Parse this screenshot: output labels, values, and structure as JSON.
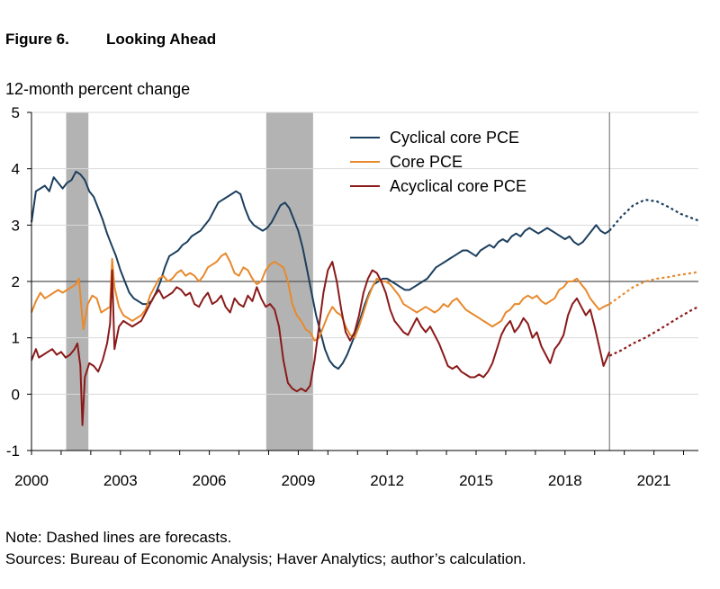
{
  "figure": {
    "number": "Figure 6.",
    "title": "Looking Ahead",
    "unit_label": "12-month percent change",
    "note": "Note: Dashed lines are forecasts.",
    "sources": "Sources: Bureau of Economic Analysis; Haver Analytics; author’s calculation."
  },
  "chart_data": {
    "type": "line",
    "title": "Looking Ahead",
    "ylabel": "12-month percent change",
    "xlim": [
      2000,
      2022.5
    ],
    "ylim": [
      -1,
      5
    ],
    "yticks": [
      -1,
      0,
      1,
      2,
      3,
      4,
      5
    ],
    "xticks": [
      2000,
      2003,
      2006,
      2009,
      2012,
      2015,
      2018,
      2021
    ],
    "grid": true,
    "reference_line": 2,
    "forecast_start": 2019.5,
    "legend_position": "top-center",
    "recessions": [
      [
        2001.17,
        2001.92
      ],
      [
        2007.92,
        2009.5
      ]
    ],
    "series": [
      {
        "name": "Cyclical core PCE",
        "color": "#1c3f5e",
        "x": [
          2000.0,
          2000.15,
          2000.3,
          2000.45,
          2000.6,
          2000.75,
          2000.9,
          2001.05,
          2001.2,
          2001.35,
          2001.5,
          2001.65,
          2001.8,
          2001.95,
          2002.1,
          2002.25,
          2002.4,
          2002.55,
          2002.7,
          2002.85,
          2003.0,
          2003.15,
          2003.3,
          2003.45,
          2003.6,
          2003.75,
          2003.9,
          2004.05,
          2004.2,
          2004.35,
          2004.5,
          2004.65,
          2004.8,
          2004.95,
          2005.1,
          2005.25,
          2005.4,
          2005.55,
          2005.7,
          2005.85,
          2006.0,
          2006.15,
          2006.3,
          2006.45,
          2006.6,
          2006.75,
          2006.9,
          2007.05,
          2007.2,
          2007.35,
          2007.5,
          2007.65,
          2007.8,
          2007.95,
          2008.1,
          2008.25,
          2008.4,
          2008.55,
          2008.7,
          2008.85,
          2009.0,
          2009.15,
          2009.3,
          2009.45,
          2009.6,
          2009.75,
          2009.9,
          2010.05,
          2010.2,
          2010.35,
          2010.5,
          2010.65,
          2010.8,
          2010.95,
          2011.1,
          2011.25,
          2011.4,
          2011.55,
          2011.7,
          2011.85,
          2012.0,
          2012.15,
          2012.3,
          2012.45,
          2012.6,
          2012.75,
          2012.9,
          2013.05,
          2013.2,
          2013.35,
          2013.5,
          2013.65,
          2013.8,
          2013.95,
          2014.1,
          2014.25,
          2014.4,
          2014.55,
          2014.7,
          2014.85,
          2015.0,
          2015.15,
          2015.3,
          2015.45,
          2015.6,
          2015.75,
          2015.9,
          2016.05,
          2016.2,
          2016.35,
          2016.5,
          2016.65,
          2016.8,
          2016.95,
          2017.1,
          2017.25,
          2017.4,
          2017.55,
          2017.7,
          2017.85,
          2018.0,
          2018.15,
          2018.3,
          2018.45,
          2018.6,
          2018.75,
          2018.9,
          2019.05,
          2019.2,
          2019.35,
          2019.5
        ],
        "values": [
          3.05,
          3.6,
          3.65,
          3.7,
          3.6,
          3.85,
          3.75,
          3.65,
          3.75,
          3.8,
          3.95,
          3.9,
          3.8,
          3.6,
          3.5,
          3.3,
          3.1,
          2.85,
          2.65,
          2.45,
          2.2,
          2.0,
          1.8,
          1.7,
          1.65,
          1.6,
          1.6,
          1.65,
          1.8,
          2.0,
          2.25,
          2.45,
          2.5,
          2.55,
          2.65,
          2.7,
          2.8,
          2.85,
          2.9,
          3.0,
          3.1,
          3.25,
          3.4,
          3.45,
          3.5,
          3.55,
          3.6,
          3.55,
          3.3,
          3.1,
          3.0,
          2.95,
          2.9,
          2.95,
          3.05,
          3.2,
          3.35,
          3.4,
          3.3,
          3.1,
          2.9,
          2.6,
          2.2,
          1.8,
          1.4,
          1.1,
          0.8,
          0.6,
          0.5,
          0.45,
          0.55,
          0.7,
          0.9,
          1.1,
          1.35,
          1.6,
          1.8,
          1.95,
          2.0,
          2.05,
          2.05,
          2.0,
          1.95,
          1.9,
          1.85,
          1.85,
          1.9,
          1.95,
          2.0,
          2.05,
          2.15,
          2.25,
          2.3,
          2.35,
          2.4,
          2.45,
          2.5,
          2.55,
          2.55,
          2.5,
          2.45,
          2.55,
          2.6,
          2.65,
          2.6,
          2.7,
          2.75,
          2.7,
          2.8,
          2.85,
          2.8,
          2.9,
          2.95,
          2.9,
          2.85,
          2.9,
          2.95,
          2.9,
          2.85,
          2.8,
          2.75,
          2.8,
          2.7,
          2.65,
          2.7,
          2.8,
          2.9,
          3.0,
          2.9,
          2.85,
          2.9
        ]
      },
      {
        "name": "Core PCE",
        "color": "#e8892c",
        "x": [
          2000.0,
          2000.15,
          2000.3,
          2000.45,
          2000.6,
          2000.75,
          2000.9,
          2001.05,
          2001.2,
          2001.35,
          2001.5,
          2001.6,
          2001.75,
          2001.9,
          2002.05,
          2002.2,
          2002.35,
          2002.5,
          2002.65,
          2002.72,
          2002.8,
          2002.95,
          2003.1,
          2003.25,
          2003.4,
          2003.55,
          2003.7,
          2003.85,
          2004.0,
          2004.15,
          2004.3,
          2004.45,
          2004.6,
          2004.75,
          2004.9,
          2005.05,
          2005.2,
          2005.35,
          2005.5,
          2005.65,
          2005.8,
          2005.95,
          2006.1,
          2006.25,
          2006.4,
          2006.55,
          2006.7,
          2006.85,
          2007.0,
          2007.15,
          2007.3,
          2007.45,
          2007.6,
          2007.75,
          2007.9,
          2008.05,
          2008.2,
          2008.35,
          2008.5,
          2008.65,
          2008.8,
          2008.95,
          2009.1,
          2009.25,
          2009.4,
          2009.55,
          2009.7,
          2009.85,
          2010.0,
          2010.15,
          2010.3,
          2010.45,
          2010.6,
          2010.75,
          2010.9,
          2011.05,
          2011.2,
          2011.35,
          2011.5,
          2011.65,
          2011.8,
          2011.95,
          2012.1,
          2012.25,
          2012.4,
          2012.55,
          2012.7,
          2012.85,
          2013.0,
          2013.15,
          2013.3,
          2013.45,
          2013.6,
          2013.75,
          2013.9,
          2014.05,
          2014.2,
          2014.35,
          2014.5,
          2014.65,
          2014.8,
          2014.95,
          2015.1,
          2015.25,
          2015.4,
          2015.55,
          2015.7,
          2015.85,
          2016.0,
          2016.15,
          2016.3,
          2016.45,
          2016.6,
          2016.75,
          2016.9,
          2017.05,
          2017.2,
          2017.35,
          2017.5,
          2017.65,
          2017.8,
          2017.95,
          2018.1,
          2018.25,
          2018.4,
          2018.55,
          2018.7,
          2018.85,
          2019.0,
          2019.15,
          2019.3,
          2019.5
        ],
        "values": [
          1.45,
          1.65,
          1.8,
          1.7,
          1.75,
          1.8,
          1.85,
          1.8,
          1.85,
          1.9,
          1.95,
          2.05,
          1.15,
          1.6,
          1.75,
          1.7,
          1.45,
          1.5,
          1.55,
          2.4,
          1.9,
          1.55,
          1.4,
          1.35,
          1.3,
          1.35,
          1.4,
          1.5,
          1.75,
          1.9,
          2.05,
          2.1,
          2.0,
          2.05,
          2.15,
          2.2,
          2.1,
          2.15,
          2.1,
          2.0,
          2.1,
          2.25,
          2.3,
          2.35,
          2.45,
          2.5,
          2.35,
          2.15,
          2.1,
          2.25,
          2.2,
          2.05,
          1.95,
          2.0,
          2.2,
          2.3,
          2.35,
          2.3,
          2.25,
          2.0,
          1.6,
          1.4,
          1.3,
          1.15,
          1.1,
          0.95,
          1.0,
          1.2,
          1.4,
          1.55,
          1.45,
          1.4,
          1.2,
          1.05,
          1.0,
          1.2,
          1.45,
          1.7,
          1.9,
          2.05,
          2.0,
          2.0,
          1.95,
          1.85,
          1.75,
          1.6,
          1.55,
          1.5,
          1.45,
          1.5,
          1.55,
          1.5,
          1.45,
          1.5,
          1.6,
          1.55,
          1.65,
          1.7,
          1.6,
          1.5,
          1.45,
          1.4,
          1.35,
          1.3,
          1.25,
          1.2,
          1.25,
          1.3,
          1.45,
          1.5,
          1.6,
          1.6,
          1.7,
          1.75,
          1.7,
          1.75,
          1.65,
          1.6,
          1.65,
          1.7,
          1.85,
          1.9,
          2.0,
          2.0,
          2.05,
          1.95,
          1.85,
          1.7,
          1.6,
          1.5,
          1.55,
          1.6
        ]
      },
      {
        "name": "Acyclical core PCE",
        "color": "#8b1a1a",
        "x": [
          2000.0,
          2000.15,
          2000.25,
          2000.4,
          2000.55,
          2000.7,
          2000.85,
          2001.0,
          2001.15,
          2001.3,
          2001.45,
          2001.55,
          2001.65,
          2001.72,
          2001.8,
          2001.95,
          2002.1,
          2002.25,
          2002.4,
          2002.55,
          2002.65,
          2002.72,
          2002.8,
          2002.95,
          2003.1,
          2003.25,
          2003.4,
          2003.55,
          2003.7,
          2003.85,
          2004.0,
          2004.15,
          2004.3,
          2004.45,
          2004.6,
          2004.75,
          2004.9,
          2005.05,
          2005.2,
          2005.35,
          2005.5,
          2005.65,
          2005.8,
          2005.95,
          2006.1,
          2006.25,
          2006.4,
          2006.55,
          2006.7,
          2006.85,
          2007.0,
          2007.15,
          2007.3,
          2007.45,
          2007.6,
          2007.75,
          2007.9,
          2008.05,
          2008.2,
          2008.35,
          2008.5,
          2008.65,
          2008.8,
          2008.95,
          2009.1,
          2009.25,
          2009.4,
          2009.55,
          2009.7,
          2009.85,
          2010.0,
          2010.15,
          2010.3,
          2010.45,
          2010.6,
          2010.75,
          2010.9,
          2011.05,
          2011.2,
          2011.35,
          2011.5,
          2011.65,
          2011.8,
          2011.95,
          2012.1,
          2012.25,
          2012.4,
          2012.55,
          2012.7,
          2012.85,
          2013.0,
          2013.15,
          2013.3,
          2013.45,
          2013.6,
          2013.75,
          2013.9,
          2014.05,
          2014.2,
          2014.35,
          2014.5,
          2014.65,
          2014.8,
          2014.95,
          2015.1,
          2015.25,
          2015.4,
          2015.55,
          2015.7,
          2015.85,
          2016.0,
          2016.15,
          2016.3,
          2016.45,
          2016.6,
          2016.75,
          2016.9,
          2017.05,
          2017.2,
          2017.35,
          2017.5,
          2017.65,
          2017.8,
          2017.95,
          2018.1,
          2018.25,
          2018.4,
          2018.55,
          2018.7,
          2018.85,
          2019.0,
          2019.15,
          2019.3,
          2019.5
        ],
        "values": [
          0.6,
          0.8,
          0.65,
          0.7,
          0.75,
          0.8,
          0.7,
          0.75,
          0.65,
          0.7,
          0.8,
          0.9,
          0.5,
          -0.55,
          0.3,
          0.55,
          0.5,
          0.4,
          0.6,
          0.9,
          1.25,
          2.2,
          0.8,
          1.2,
          1.3,
          1.25,
          1.2,
          1.25,
          1.3,
          1.45,
          1.6,
          1.75,
          1.85,
          1.7,
          1.75,
          1.8,
          1.9,
          1.85,
          1.75,
          1.8,
          1.6,
          1.55,
          1.7,
          1.8,
          1.6,
          1.65,
          1.75,
          1.55,
          1.45,
          1.7,
          1.6,
          1.55,
          1.75,
          1.65,
          1.9,
          1.7,
          1.55,
          1.6,
          1.5,
          1.2,
          0.6,
          0.2,
          0.1,
          0.05,
          0.1,
          0.05,
          0.15,
          0.6,
          1.2,
          1.8,
          2.2,
          2.35,
          2.0,
          1.5,
          1.1,
          0.95,
          1.1,
          1.4,
          1.8,
          2.05,
          2.2,
          2.15,
          2.0,
          1.8,
          1.5,
          1.3,
          1.2,
          1.1,
          1.05,
          1.2,
          1.35,
          1.2,
          1.1,
          1.2,
          1.05,
          0.9,
          0.7,
          0.5,
          0.45,
          0.5,
          0.4,
          0.35,
          0.3,
          0.3,
          0.35,
          0.3,
          0.4,
          0.55,
          0.8,
          1.05,
          1.2,
          1.3,
          1.1,
          1.2,
          1.35,
          1.25,
          1.0,
          1.1,
          0.85,
          0.7,
          0.55,
          0.8,
          0.9,
          1.05,
          1.4,
          1.6,
          1.7,
          1.55,
          1.4,
          1.5,
          1.2,
          0.85,
          0.5,
          0.75
        ]
      },
      {
        "name": "Cyclical core PCE forecast",
        "color": "#1c3f5e",
        "dashed": true,
        "x": [
          2019.5,
          2019.9,
          2020.3,
          2020.7,
          2021.1,
          2021.5,
          2021.9,
          2022.3,
          2022.5
        ],
        "values": [
          2.9,
          3.15,
          3.35,
          3.45,
          3.42,
          3.32,
          3.2,
          3.12,
          3.08
        ]
      },
      {
        "name": "Core PCE forecast",
        "color": "#e8892c",
        "dashed": true,
        "x": [
          2019.5,
          2019.9,
          2020.3,
          2020.7,
          2021.1,
          2021.5,
          2021.9,
          2022.3,
          2022.5
        ],
        "values": [
          1.6,
          1.75,
          1.9,
          2.0,
          2.05,
          2.08,
          2.12,
          2.15,
          2.17
        ]
      },
      {
        "name": "Acyclical core PCE forecast",
        "color": "#8b1a1a",
        "dashed": true,
        "x": [
          2019.5,
          2019.9,
          2020.3,
          2020.7,
          2021.1,
          2021.5,
          2021.9,
          2022.3,
          2022.5
        ],
        "values": [
          0.68,
          0.78,
          0.9,
          1.0,
          1.12,
          1.25,
          1.38,
          1.5,
          1.55
        ]
      }
    ],
    "legend": [
      {
        "label": "Cyclical core PCE",
        "color": "#1c3f5e"
      },
      {
        "label": "Core PCE",
        "color": "#e8892c"
      },
      {
        "label": "Acyclical core PCE",
        "color": "#8b1a1a"
      }
    ]
  }
}
